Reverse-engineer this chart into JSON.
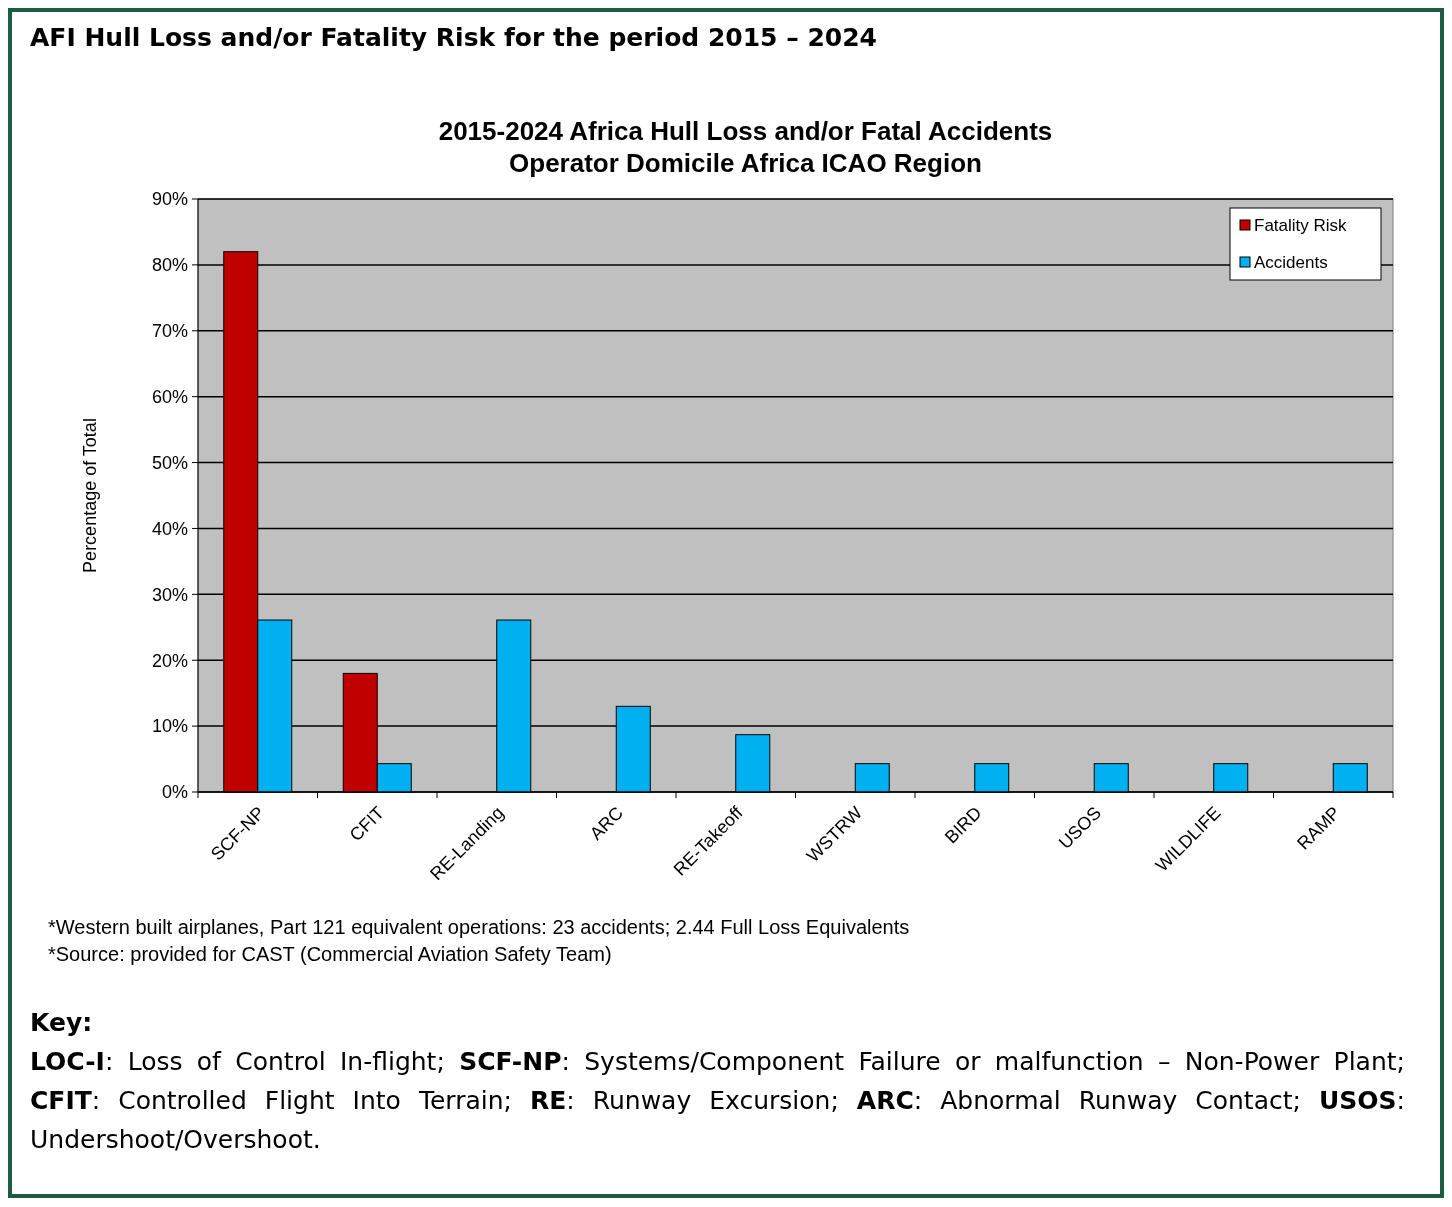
{
  "chart_data": {
    "type": "bar",
    "title": "AFI Hull Loss and/or Fatality Risk for the period 2015 – 2024",
    "subtitle": "2015-2024 Africa Hull Loss and/or Fatal Accidents\nOperator Domicile Africa ICAO Region",
    "ylabel": "Percentage of Total",
    "categories": [
      "SCF-NP",
      "CFIT",
      "RE-Landing",
      "ARC",
      "RE-Takeoff",
      "WSTRW",
      "BIRD",
      "USOS",
      "WILDLIFE",
      "RAMP"
    ],
    "series": [
      {
        "name": "Fatality Risk",
        "color": "#c00000",
        "values": [
          82,
          18,
          null,
          null,
          null,
          null,
          null,
          null,
          null,
          null
        ]
      },
      {
        "name": "Accidents",
        "color": "#00b0f0",
        "values": [
          26.1,
          4.3,
          26.1,
          13,
          8.7,
          4.3,
          4.3,
          4.3,
          4.3,
          4.3
        ]
      }
    ],
    "ylim": [
      0,
      90
    ],
    "yticks": [
      {
        "value": 0,
        "label": "0%"
      },
      {
        "value": 10,
        "label": "10%"
      },
      {
        "value": 20,
        "label": "20%"
      },
      {
        "value": 30,
        "label": "30%"
      },
      {
        "value": 40,
        "label": "40%"
      },
      {
        "value": 50,
        "label": "50%"
      },
      {
        "value": 60,
        "label": "60%"
      },
      {
        "value": 70,
        "label": "70%"
      },
      {
        "value": 80,
        "label": "80%"
      },
      {
        "value": 90,
        "label": "90%"
      }
    ],
    "grid": "y",
    "legend": "top right",
    "annotations": [
      "*Western built airplanes, Part 121 equivalent operations: 23 accidents; 2.44 Full Loss Equivalents",
      "*Source: provided for CAST (Commercial Aviation Safety Team)",
      "Key:",
      "LOC-I: Loss of Control In-flight; SCF-NP: Systems/Component Failure or malfunction – Non-Power Plant; CFIT: Controlled Flight Into Terrain; RE: Runway Excursion; ARC: Abnormal Runway Contact; USOS: Undershoot/Overshoot."
    ]
  }
}
